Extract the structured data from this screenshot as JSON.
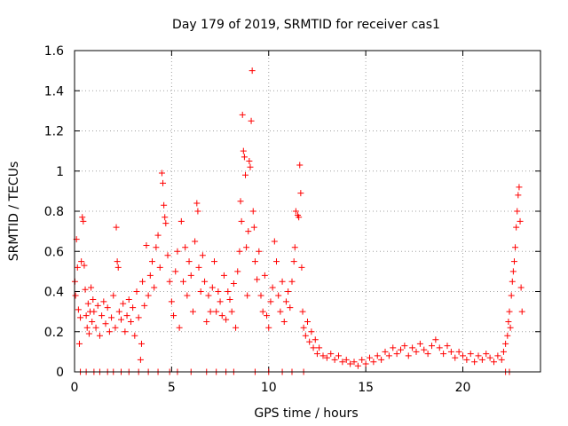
{
  "chart_data": {
    "type": "scatter",
    "title": "Day 179 of 2019, SRMTID for receiver cas1",
    "xlabel": "GPS time / hours",
    "ylabel": "SRMTID / TECUs",
    "xlim": [
      0,
      24
    ],
    "ylim": [
      0,
      1.6
    ],
    "x_ticks": [
      0,
      5,
      10,
      15,
      20
    ],
    "x_tick_labels": [
      "0",
      "5",
      "10",
      "15",
      "20"
    ],
    "y_ticks": [
      0,
      0.2,
      0.4,
      0.6,
      0.8,
      1.0,
      1.2,
      1.4,
      1.6
    ],
    "y_tick_labels": [
      "0",
      "0.2",
      "0.4",
      "0.6",
      "0.8",
      "1",
      "1.2",
      "1.4",
      "1.6"
    ],
    "grid": true,
    "marker": "+",
    "color": "#ff0000",
    "series": [
      {
        "name": "SRMTID",
        "points": [
          [
            0.02,
            0.45
          ],
          [
            0.05,
            0.38
          ],
          [
            0.1,
            0.66
          ],
          [
            0.15,
            0.52
          ],
          [
            0.2,
            0.31
          ],
          [
            0.25,
            0.14
          ],
          [
            0.3,
            0.27
          ],
          [
            0.35,
            0.55
          ],
          [
            0.4,
            0.77
          ],
          [
            0.45,
            0.75
          ],
          [
            0.5,
            0.53
          ],
          [
            0.55,
            0.41
          ],
          [
            0.6,
            0.28
          ],
          [
            0.65,
            0.22
          ],
          [
            0.7,
            0.34
          ],
          [
            0.75,
            0.19
          ],
          [
            0.8,
            0.3
          ],
          [
            0.85,
            0.42
          ],
          [
            0.9,
            0.25
          ],
          [
            0.95,
            0.36
          ],
          [
            1.0,
            0.3
          ],
          [
            1.1,
            0.22
          ],
          [
            1.2,
            0.33
          ],
          [
            1.3,
            0.18
          ],
          [
            1.4,
            0.28
          ],
          [
            1.5,
            0.35
          ],
          [
            1.6,
            0.24
          ],
          [
            1.7,
            0.32
          ],
          [
            1.8,
            0.2
          ],
          [
            1.9,
            0.27
          ],
          [
            2.0,
            0.38
          ],
          [
            2.1,
            0.22
          ],
          [
            2.15,
            0.72
          ],
          [
            2.2,
            0.55
          ],
          [
            2.25,
            0.52
          ],
          [
            2.3,
            0.3
          ],
          [
            2.4,
            0.26
          ],
          [
            2.5,
            0.34
          ],
          [
            2.6,
            0.2
          ],
          [
            2.7,
            0.28
          ],
          [
            2.8,
            0.36
          ],
          [
            2.9,
            0.25
          ],
          [
            3.0,
            0.32
          ],
          [
            3.1,
            0.18
          ],
          [
            3.2,
            0.4
          ],
          [
            3.3,
            0.27
          ],
          [
            3.4,
            0.06
          ],
          [
            3.45,
            0.14
          ],
          [
            3.5,
            0.45
          ],
          [
            3.6,
            0.33
          ],
          [
            3.7,
            0.63
          ],
          [
            3.8,
            0.38
          ],
          [
            3.9,
            0.48
          ],
          [
            4.0,
            0.55
          ],
          [
            4.1,
            0.42
          ],
          [
            4.2,
            0.62
          ],
          [
            4.3,
            0.68
          ],
          [
            4.4,
            0.52
          ],
          [
            4.5,
            0.99
          ],
          [
            4.55,
            0.94
          ],
          [
            4.6,
            0.83
          ],
          [
            4.65,
            0.77
          ],
          [
            4.7,
            0.74
          ],
          [
            4.8,
            0.58
          ],
          [
            4.9,
            0.45
          ],
          [
            5.0,
            0.35
          ],
          [
            5.1,
            0.28
          ],
          [
            5.2,
            0.5
          ],
          [
            5.3,
            0.6
          ],
          [
            5.4,
            0.22
          ],
          [
            5.5,
            0.75
          ],
          [
            5.6,
            0.45
          ],
          [
            5.7,
            0.62
          ],
          [
            5.8,
            0.38
          ],
          [
            5.9,
            0.55
          ],
          [
            6.0,
            0.48
          ],
          [
            6.1,
            0.3
          ],
          [
            6.2,
            0.65
          ],
          [
            6.3,
            0.84
          ],
          [
            6.35,
            0.8
          ],
          [
            6.4,
            0.52
          ],
          [
            6.5,
            0.4
          ],
          [
            6.6,
            0.58
          ],
          [
            6.7,
            0.45
          ],
          [
            6.8,
            0.25
          ],
          [
            6.9,
            0.38
          ],
          [
            7.0,
            0.3
          ],
          [
            7.1,
            0.42
          ],
          [
            7.2,
            0.55
          ],
          [
            7.3,
            0.3
          ],
          [
            7.4,
            0.4
          ],
          [
            7.5,
            0.35
          ],
          [
            7.6,
            0.28
          ],
          [
            7.7,
            0.48
          ],
          [
            7.8,
            0.26
          ],
          [
            7.9,
            0.4
          ],
          [
            8.0,
            0.36
          ],
          [
            8.1,
            0.3
          ],
          [
            8.2,
            0.44
          ],
          [
            8.3,
            0.22
          ],
          [
            8.4,
            0.5
          ],
          [
            8.5,
            0.6
          ],
          [
            8.55,
            0.85
          ],
          [
            8.6,
            0.75
          ],
          [
            8.65,
            1.28
          ],
          [
            8.7,
            1.1
          ],
          [
            8.75,
            1.07
          ],
          [
            8.8,
            0.98
          ],
          [
            8.85,
            0.62
          ],
          [
            8.9,
            0.38
          ],
          [
            8.95,
            0.7
          ],
          [
            9.0,
            1.05
          ],
          [
            9.05,
            1.02
          ],
          [
            9.1,
            1.25
          ],
          [
            9.15,
            1.5
          ],
          [
            9.2,
            0.8
          ],
          [
            9.25,
            0.72
          ],
          [
            9.3,
            0.55
          ],
          [
            9.4,
            0.46
          ],
          [
            9.5,
            0.6
          ],
          [
            9.6,
            0.38
          ],
          [
            9.7,
            0.3
          ],
          [
            9.8,
            0.48
          ],
          [
            9.9,
            0.28
          ],
          [
            10.0,
            0.22
          ],
          [
            10.1,
            0.35
          ],
          [
            10.2,
            0.42
          ],
          [
            10.3,
            0.65
          ],
          [
            10.4,
            0.55
          ],
          [
            10.5,
            0.38
          ],
          [
            10.6,
            0.3
          ],
          [
            10.7,
            0.45
          ],
          [
            10.8,
            0.25
          ],
          [
            10.9,
            0.35
          ],
          [
            11.0,
            0.4
          ],
          [
            11.1,
            0.32
          ],
          [
            11.2,
            0.45
          ],
          [
            11.3,
            0.55
          ],
          [
            11.35,
            0.62
          ],
          [
            11.4,
            0.8
          ],
          [
            11.5,
            0.78
          ],
          [
            11.55,
            0.77
          ],
          [
            11.6,
            1.03
          ],
          [
            11.65,
            0.89
          ],
          [
            11.7,
            0.52
          ],
          [
            11.75,
            0.3
          ],
          [
            11.8,
            0.22
          ],
          [
            11.9,
            0.18
          ],
          [
            12.0,
            0.25
          ],
          [
            12.1,
            0.15
          ],
          [
            12.2,
            0.2
          ],
          [
            12.3,
            0.12
          ],
          [
            12.4,
            0.16
          ],
          [
            12.5,
            0.09
          ],
          [
            12.6,
            0.12
          ],
          [
            12.8,
            0.08
          ],
          [
            13.0,
            0.07
          ],
          [
            13.2,
            0.09
          ],
          [
            13.4,
            0.06
          ],
          [
            13.6,
            0.08
          ],
          [
            13.8,
            0.05
          ],
          [
            14.0,
            0.06
          ],
          [
            14.2,
            0.04
          ],
          [
            14.4,
            0.05
          ],
          [
            14.6,
            0.03
          ],
          [
            14.8,
            0.06
          ],
          [
            15.0,
            0.04
          ],
          [
            15.2,
            0.07
          ],
          [
            15.4,
            0.05
          ],
          [
            15.6,
            0.08
          ],
          [
            15.8,
            0.06
          ],
          [
            16.0,
            0.1
          ],
          [
            16.2,
            0.08
          ],
          [
            16.4,
            0.12
          ],
          [
            16.6,
            0.09
          ],
          [
            16.8,
            0.11
          ],
          [
            17.0,
            0.13
          ],
          [
            17.2,
            0.08
          ],
          [
            17.4,
            0.12
          ],
          [
            17.6,
            0.1
          ],
          [
            17.8,
            0.14
          ],
          [
            18.0,
            0.11
          ],
          [
            18.2,
            0.09
          ],
          [
            18.4,
            0.13
          ],
          [
            18.6,
            0.16
          ],
          [
            18.8,
            0.12
          ],
          [
            19.0,
            0.09
          ],
          [
            19.2,
            0.13
          ],
          [
            19.4,
            0.1
          ],
          [
            19.6,
            0.07
          ],
          [
            19.8,
            0.1
          ],
          [
            20.0,
            0.08
          ],
          [
            20.2,
            0.06
          ],
          [
            20.4,
            0.09
          ],
          [
            20.6,
            0.05
          ],
          [
            20.8,
            0.08
          ],
          [
            21.0,
            0.06
          ],
          [
            21.2,
            0.09
          ],
          [
            21.4,
            0.07
          ],
          [
            21.6,
            0.05
          ],
          [
            21.8,
            0.08
          ],
          [
            22.0,
            0.06
          ],
          [
            22.1,
            0.1
          ],
          [
            22.2,
            0.14
          ],
          [
            22.3,
            0.18
          ],
          [
            22.35,
            0.25
          ],
          [
            22.4,
            0.3
          ],
          [
            22.45,
            0.22
          ],
          [
            22.5,
            0.38
          ],
          [
            22.55,
            0.45
          ],
          [
            22.6,
            0.5
          ],
          [
            22.65,
            0.55
          ],
          [
            22.7,
            0.62
          ],
          [
            22.75,
            0.72
          ],
          [
            22.8,
            0.8
          ],
          [
            22.85,
            0.88
          ],
          [
            22.9,
            0.92
          ],
          [
            22.95,
            0.75
          ],
          [
            23.0,
            0.42
          ],
          [
            23.05,
            0.3
          ],
          [
            0.3,
            0.0
          ],
          [
            0.6,
            0.0
          ],
          [
            1.0,
            0.0
          ],
          [
            1.3,
            0.0
          ],
          [
            1.7,
            0.0
          ],
          [
            2.0,
            0.0
          ],
          [
            2.4,
            0.0
          ],
          [
            2.8,
            0.0
          ],
          [
            3.3,
            0.0
          ],
          [
            3.8,
            0.0
          ],
          [
            4.3,
            0.0
          ],
          [
            4.9,
            0.0
          ],
          [
            5.3,
            0.0
          ],
          [
            6.0,
            0.0
          ],
          [
            6.8,
            0.0
          ],
          [
            7.3,
            0.0
          ],
          [
            7.8,
            0.0
          ],
          [
            8.2,
            0.0
          ],
          [
            9.3,
            0.0
          ],
          [
            10.0,
            0.0
          ],
          [
            10.7,
            0.0
          ],
          [
            11.2,
            0.0
          ],
          [
            11.8,
            0.0
          ],
          [
            22.2,
            0.0
          ],
          [
            22.4,
            0.0
          ]
        ]
      }
    ]
  }
}
